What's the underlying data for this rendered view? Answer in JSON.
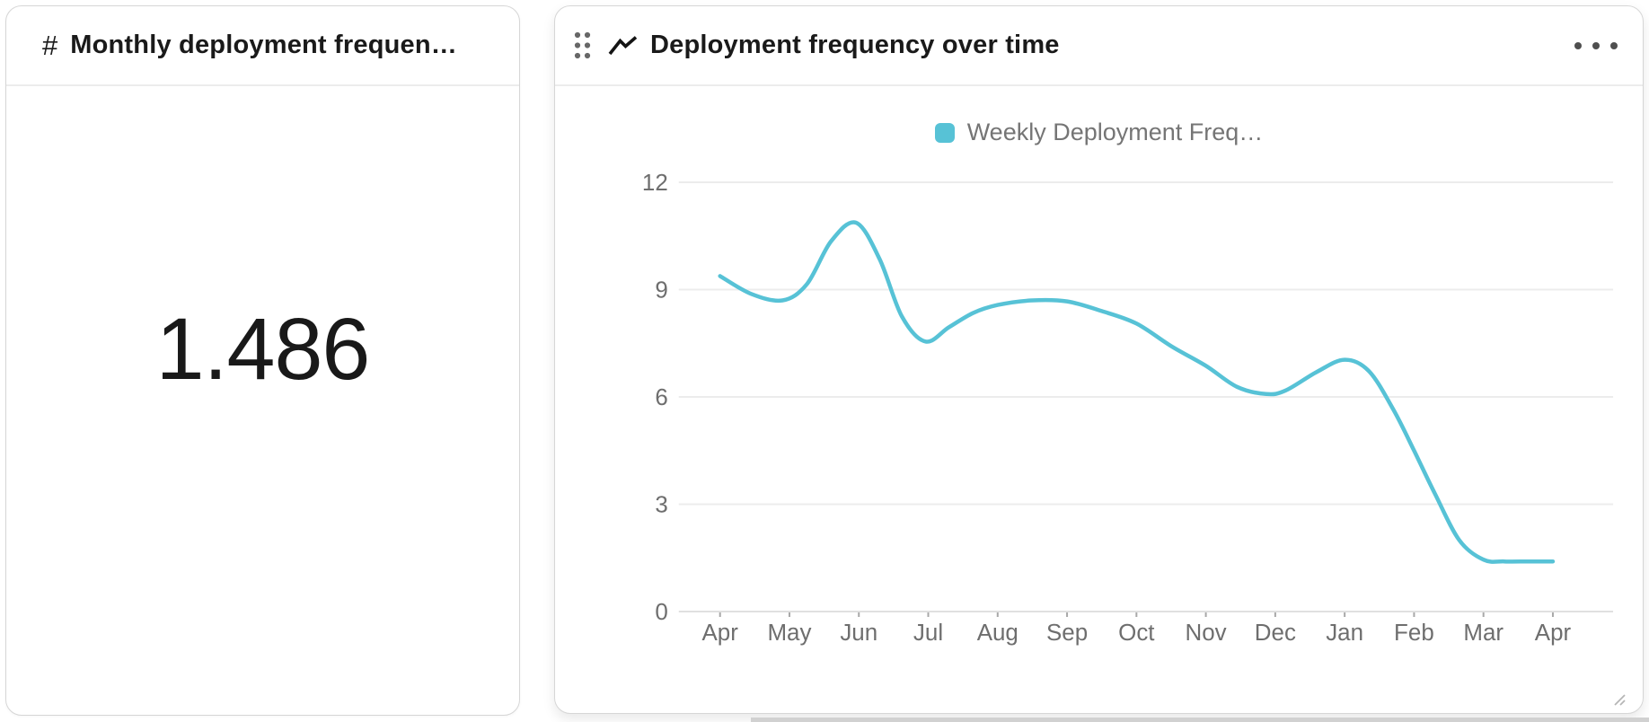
{
  "metric_card": {
    "hash_symbol": "#",
    "title": "Monthly deployment frequen…",
    "value": "1.486"
  },
  "chart_card": {
    "title": "Deployment frequency over time"
  },
  "chart_data": {
    "type": "line",
    "title": "Deployment frequency over time",
    "legend": {
      "label": "Weekly Deployment Freq…",
      "position": "top-center"
    },
    "x_tick_labels": [
      "Apr",
      "May",
      "Jun",
      "Jul",
      "Aug",
      "Sep",
      "Oct",
      "Nov",
      "Dec",
      "Jan",
      "Feb",
      "Mar",
      "Apr"
    ],
    "y_ticks": [
      0,
      3,
      6,
      9,
      12
    ],
    "ylim": [
      0,
      12
    ],
    "xlabel": "",
    "ylabel": "",
    "grid": "horizontal",
    "series": [
      {
        "name": "Weekly Deployment Freq…",
        "color": "#57c2d6",
        "points": [
          [
            0,
            9.38
          ],
          [
            0.45,
            8.88
          ],
          [
            0.9,
            8.7
          ],
          [
            1.25,
            9.15
          ],
          [
            1.6,
            10.35
          ],
          [
            1.96,
            10.87
          ],
          [
            2.3,
            9.85
          ],
          [
            2.62,
            8.25
          ],
          [
            2.96,
            7.55
          ],
          [
            3.3,
            7.95
          ],
          [
            3.65,
            8.35
          ],
          [
            4,
            8.57
          ],
          [
            4.5,
            8.7
          ],
          [
            5,
            8.67
          ],
          [
            5.5,
            8.4
          ],
          [
            6,
            8.05
          ],
          [
            6.5,
            7.42
          ],
          [
            7,
            6.87
          ],
          [
            7.45,
            6.28
          ],
          [
            7.87,
            6.08
          ],
          [
            8.15,
            6.18
          ],
          [
            8.6,
            6.7
          ],
          [
            9,
            7.04
          ],
          [
            9.35,
            6.72
          ],
          [
            9.7,
            5.65
          ],
          [
            10,
            4.5
          ],
          [
            10.3,
            3.3
          ],
          [
            10.65,
            2.0
          ],
          [
            11,
            1.45
          ],
          [
            11.3,
            1.4
          ],
          [
            11.65,
            1.4
          ],
          [
            12,
            1.4
          ]
        ]
      }
    ]
  },
  "colors": {
    "accent_line": "#57c2d6",
    "axis_text": "#6e6e6e",
    "gridline": "#ececec",
    "axis_line": "#e0e0e0",
    "tick_mark": "#a8a8a8",
    "title_text": "#1a1a1a",
    "card_border": "#d6d6d6"
  }
}
